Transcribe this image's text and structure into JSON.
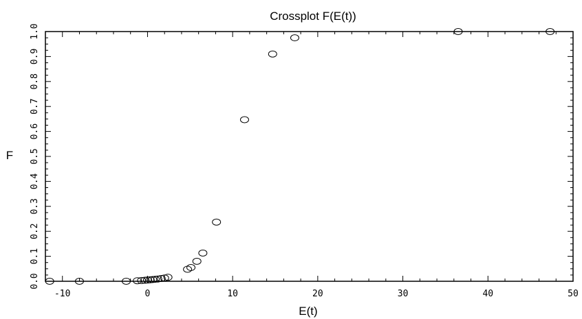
{
  "chart_data": {
    "type": "scatter",
    "title": "Crossplot F(E(t))",
    "xlabel": "E(t)",
    "ylabel": "F",
    "xlim": [
      -12,
      50
    ],
    "ylim": [
      0,
      1
    ],
    "grid": false,
    "marker": "open-circle",
    "x_ticks": [
      -10,
      0,
      10,
      20,
      30,
      40,
      50
    ],
    "x_tick_labels": [
      "-10",
      "0",
      "10",
      "20",
      "30",
      "40",
      "50"
    ],
    "y_ticks": [
      0,
      0.1,
      0.2,
      0.3,
      0.4,
      0.5,
      0.6,
      0.7,
      0.8,
      0.9,
      1.0
    ],
    "y_tick_labels": [
      "0.0",
      "0.1",
      "0.2",
      "0.3",
      "0.4",
      "0.5",
      "0.6",
      "0.7",
      "0.8",
      "0.9",
      "1.0"
    ],
    "points": [
      {
        "x": -11.5,
        "y": 0.0
      },
      {
        "x": -8.0,
        "y": 0.0
      },
      {
        "x": -2.5,
        "y": 0.0
      },
      {
        "x": -1.2,
        "y": 0.002
      },
      {
        "x": -0.7,
        "y": 0.003
      },
      {
        "x": -0.3,
        "y": 0.004
      },
      {
        "x": 0.0,
        "y": 0.005
      },
      {
        "x": 0.3,
        "y": 0.006
      },
      {
        "x": 0.6,
        "y": 0.007
      },
      {
        "x": 0.9,
        "y": 0.008
      },
      {
        "x": 1.2,
        "y": 0.009
      },
      {
        "x": 1.6,
        "y": 0.011
      },
      {
        "x": 2.0,
        "y": 0.013
      },
      {
        "x": 2.4,
        "y": 0.016
      },
      {
        "x": 4.7,
        "y": 0.048
      },
      {
        "x": 5.1,
        "y": 0.055
      },
      {
        "x": 5.8,
        "y": 0.08
      },
      {
        "x": 6.5,
        "y": 0.113
      },
      {
        "x": 8.1,
        "y": 0.237
      },
      {
        "x": 11.4,
        "y": 0.647
      },
      {
        "x": 14.7,
        "y": 0.91
      },
      {
        "x": 17.3,
        "y": 0.975
      },
      {
        "x": 36.5,
        "y": 1.0
      },
      {
        "x": 47.3,
        "y": 1.0
      }
    ]
  }
}
